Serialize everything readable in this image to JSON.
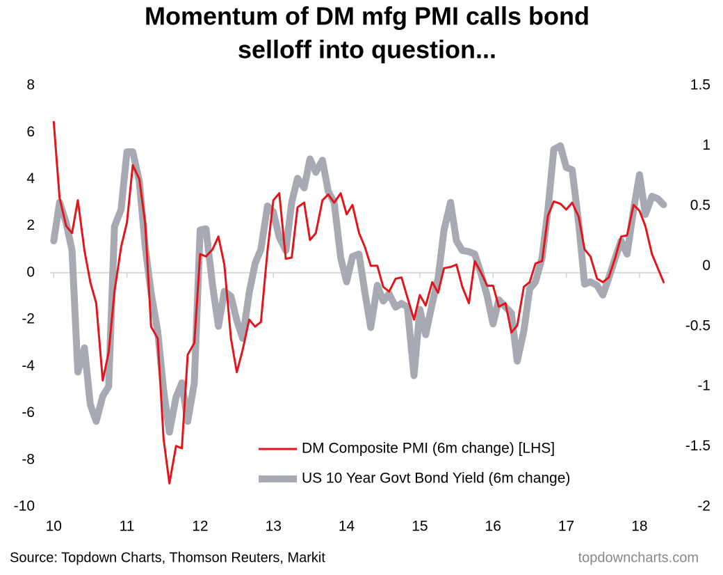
{
  "chart_data": {
    "type": "line",
    "title": [
      "Momentum of DM mfg PMI calls bond",
      "selloff into question..."
    ],
    "source": "Source: Topdown Charts, Thomson Reuters, Markit",
    "watermark": "topdowncharts.com",
    "x": [
      10.0,
      10.08,
      10.17,
      10.25,
      10.33,
      10.42,
      10.5,
      10.58,
      10.67,
      10.75,
      10.83,
      10.92,
      11.0,
      11.08,
      11.17,
      11.25,
      11.33,
      11.42,
      11.5,
      11.58,
      11.67,
      11.75,
      11.83,
      11.92,
      12.0,
      12.08,
      12.17,
      12.25,
      12.33,
      12.42,
      12.5,
      12.58,
      12.67,
      12.75,
      12.83,
      12.92,
      13.0,
      13.08,
      13.17,
      13.25,
      13.33,
      13.42,
      13.5,
      13.58,
      13.67,
      13.75,
      13.83,
      13.92,
      14.0,
      14.08,
      14.17,
      14.25,
      14.33,
      14.42,
      14.5,
      14.58,
      14.67,
      14.75,
      14.83,
      14.92,
      15.0,
      15.08,
      15.17,
      15.25,
      15.33,
      15.42,
      15.5,
      15.58,
      15.67,
      15.75,
      15.83,
      15.92,
      16.0,
      16.08,
      16.17,
      16.25,
      16.33,
      16.42,
      16.5,
      16.58,
      16.67,
      16.75,
      16.83,
      16.92,
      17.0,
      17.08,
      17.17,
      17.25,
      17.33,
      17.42,
      17.5,
      17.58,
      17.67,
      17.75,
      17.83,
      17.92,
      18.0,
      18.08,
      18.17,
      18.25,
      18.33
    ],
    "series": [
      {
        "name": "DM Composite PMI (6m change) [LHS]",
        "color": "#e3151c",
        "axis": "y",
        "values": [
          6.45,
          3.2,
          2.0,
          1.7,
          3.1,
          0.95,
          -0.4,
          -1.3,
          -4.6,
          -3.4,
          -0.8,
          1.1,
          2.15,
          4.6,
          4.0,
          2.1,
          -2.3,
          -2.8,
          -7.1,
          -9.0,
          -7.4,
          -7.5,
          -3.5,
          -3.0,
          0.8,
          0.7,
          1.0,
          1.55,
          0.35,
          -2.8,
          -4.25,
          -3.3,
          -2.0,
          -2.3,
          -2.1,
          0.95,
          3.1,
          3.4,
          0.6,
          0.65,
          2.8,
          3.0,
          1.4,
          1.7,
          3.1,
          3.35,
          3.0,
          3.4,
          2.5,
          2.9,
          1.7,
          1.1,
          0.3,
          0.3,
          -0.6,
          -0.8,
          -0.25,
          -0.2,
          -1.05,
          -2.0,
          -0.95,
          -1.4,
          -0.4,
          -0.85,
          0.2,
          0.25,
          0.35,
          -0.6,
          -1.3,
          0.5,
          0.05,
          -0.55,
          -0.55,
          -1.45,
          -1.3,
          -2.55,
          -2.25,
          -0.6,
          -0.4,
          0.4,
          0.5,
          2.45,
          3.05,
          2.95,
          2.7,
          3.0,
          2.4,
          1.0,
          0.7,
          -0.25,
          -0.4,
          -0.2,
          0.65,
          1.55,
          1.6,
          2.9,
          2.65,
          2.0,
          0.8,
          0.2,
          -0.4
        ]
      },
      {
        "name": "US 10 Year Govt Bond Yield (6m change)",
        "color": "#a7aab3",
        "axis": "y2",
        "values": [
          0.21,
          0.53,
          0.36,
          0.13,
          -0.88,
          -0.68,
          -1.15,
          -1.29,
          -1.08,
          -1.0,
          0.33,
          0.47,
          0.95,
          0.95,
          0.7,
          0.16,
          -0.22,
          -0.54,
          -1.03,
          -1.38,
          -1.09,
          -0.97,
          -1.29,
          -0.97,
          0.3,
          0.31,
          -0.16,
          -0.5,
          -0.21,
          -0.25,
          -0.45,
          -0.6,
          -0.22,
          0.02,
          0.14,
          0.5,
          0.45,
          0.24,
          0.13,
          0.53,
          0.73,
          0.65,
          0.89,
          0.78,
          0.88,
          0.62,
          0.53,
          0.07,
          -0.13,
          0.08,
          0.1,
          -0.22,
          -0.51,
          -0.16,
          -0.29,
          -0.23,
          -0.34,
          -0.31,
          -0.34,
          -0.91,
          -0.36,
          -0.57,
          -0.31,
          -0.1,
          0.3,
          0.53,
          0.21,
          0.13,
          0.12,
          0.1,
          -0.05,
          -0.25,
          -0.48,
          -0.28,
          -0.34,
          -0.39,
          -0.79,
          -0.54,
          -0.19,
          -0.13,
          0.07,
          0.47,
          0.97,
          1.0,
          0.82,
          0.8,
          0.36,
          -0.15,
          -0.13,
          -0.16,
          -0.24,
          -0.1,
          0.07,
          0.21,
          0.1,
          0.47,
          0.76,
          0.43,
          0.58,
          0.56,
          0.51
        ]
      }
    ],
    "xlim": [
      9.95,
      18.4
    ],
    "xticks": [
      10,
      11,
      12,
      13,
      14,
      15,
      16,
      17,
      18
    ],
    "ylim": [
      -10,
      8
    ],
    "yticks": [
      -10,
      -8,
      -6,
      -4,
      -2,
      0,
      2,
      4,
      6,
      8
    ],
    "y2lim": [
      -2,
      1.5
    ],
    "y2ticks": [
      -2,
      -1.5,
      -1,
      -0.5,
      0,
      0.5,
      1,
      1.5
    ],
    "grid": false,
    "legend": "lower right"
  }
}
